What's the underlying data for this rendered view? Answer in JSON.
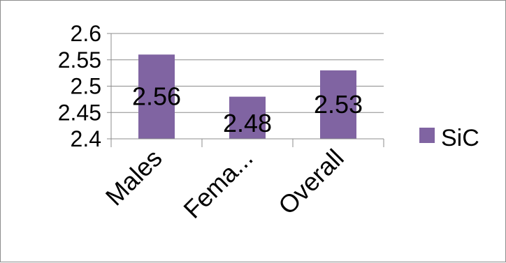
{
  "chart_data": {
    "type": "bar",
    "categories": [
      "Males",
      "Fema...",
      "Overall"
    ],
    "series": [
      {
        "name": "SiC",
        "values": [
          2.56,
          2.48,
          2.53
        ],
        "color": "#8064A2"
      }
    ],
    "data_labels": [
      "2.56",
      "2.48",
      "2.53"
    ],
    "ylim": [
      2.4,
      2.6
    ],
    "yticks": [
      "2.6",
      "2.55",
      "2.5",
      "2.45",
      "2.4"
    ],
    "ytick_values": [
      2.6,
      2.55,
      2.5,
      2.45,
      2.4
    ],
    "grid": true,
    "legend_position": "right"
  }
}
